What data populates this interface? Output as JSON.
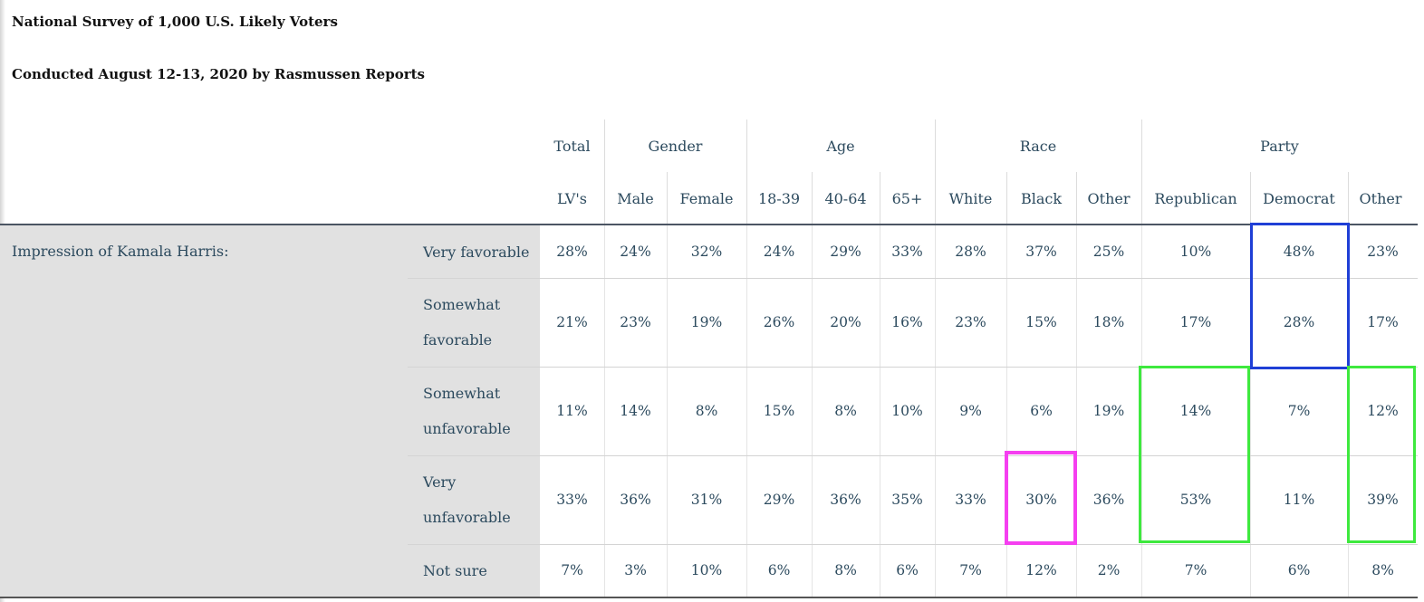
{
  "titles": {
    "line1": "National Survey of 1,000 U.S. Likely Voters",
    "line2": "Conducted August 12-13, 2020 by Rasmussen Reports"
  },
  "groups": [
    "Total",
    "Gender",
    "Age",
    "Race",
    "Party"
  ],
  "columns": [
    "LV's",
    "Male",
    "Female",
    "18-39",
    "40-64",
    "65+",
    "White",
    "Black",
    "Other",
    "Republican",
    "Democrat",
    "Other"
  ],
  "topic": "Impression of Kamala Harris:",
  "rows": [
    {
      "label": [
        "Very favorable"
      ],
      "values": [
        "28%",
        "24%",
        "32%",
        "24%",
        "29%",
        "33%",
        "28%",
        "37%",
        "25%",
        "10%",
        "48%",
        "23%"
      ]
    },
    {
      "label": [
        "Somewhat",
        "favorable"
      ],
      "values": [
        "21%",
        "23%",
        "19%",
        "26%",
        "20%",
        "16%",
        "23%",
        "15%",
        "18%",
        "17%",
        "28%",
        "17%"
      ]
    },
    {
      "label": [
        "Somewhat",
        "unfavorable"
      ],
      "values": [
        "11%",
        "14%",
        "8%",
        "15%",
        "8%",
        "10%",
        "9%",
        "6%",
        "19%",
        "14%",
        "7%",
        "12%"
      ]
    },
    {
      "label": [
        "Very",
        "unfavorable"
      ],
      "values": [
        "33%",
        "36%",
        "31%",
        "29%",
        "36%",
        "35%",
        "33%",
        "30%",
        "36%",
        "53%",
        "11%",
        "39%"
      ]
    },
    {
      "label": [
        "Not sure"
      ],
      "values": [
        "7%",
        "3%",
        "10%",
        "6%",
        "8%",
        "6%",
        "7%",
        "12%",
        "2%",
        "7%",
        "6%",
        "8%"
      ]
    }
  ],
  "highlight_colors": {
    "blue": "#1f3fd6",
    "green": "#3ee93e",
    "pink": "#f53ff0"
  }
}
